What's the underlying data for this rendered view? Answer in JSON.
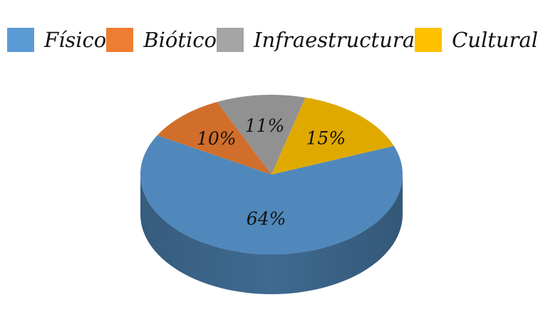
{
  "chart_data": {
    "type": "pie",
    "title": "",
    "legend_position": "top",
    "slices": [
      {
        "name": "Físico",
        "value": 64,
        "label": "64%",
        "color": "#5B9BD5"
      },
      {
        "name": "Biótico",
        "value": 10,
        "label": "10%",
        "color": "#ED7D31"
      },
      {
        "name": "Infraestructura",
        "value": 11,
        "label": "11%",
        "color": "#A5A5A5"
      },
      {
        "name": "Cultural",
        "value": 15,
        "label": "15%",
        "color": "#FFC000"
      }
    ]
  }
}
